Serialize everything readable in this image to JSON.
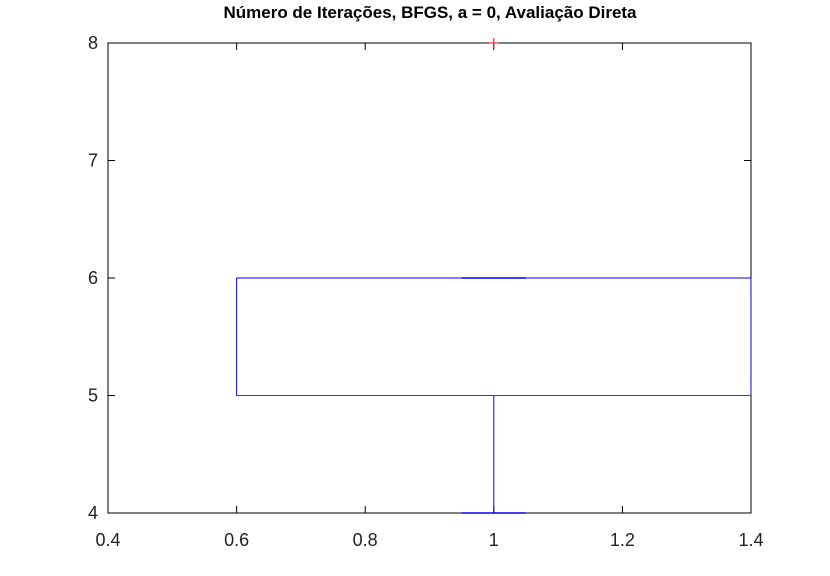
{
  "chart_data": {
    "type": "boxplot",
    "title": "Número de Iterações, BFGS, a = 0, Avaliação Direta",
    "xlabel": "",
    "ylabel": "",
    "xlim": [
      0.4,
      1.4
    ],
    "ylim": [
      4,
      8
    ],
    "xticks": [
      "0.4",
      "0.6",
      "0.8",
      "1",
      "1.2",
      "1.4"
    ],
    "yticks": [
      "4",
      "5",
      "6",
      "7",
      "8"
    ],
    "grid": false,
    "box": {
      "position": 1,
      "width": 0.8,
      "q1": 5,
      "median": 5,
      "q3": 6,
      "whisker_low": 4,
      "whisker_high": 6,
      "outliers": [
        8
      ]
    },
    "colors": {
      "box": "#0000ff",
      "median": "#ff0000",
      "outlier": "#ff0000",
      "axes": "#000000"
    }
  }
}
